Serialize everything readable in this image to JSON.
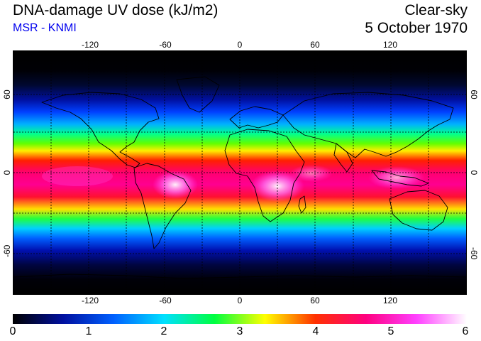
{
  "header": {
    "title": "DNA-damage UV dose (kJ/m2)",
    "subtitle": "MSR - KNMI",
    "condition": "Clear-sky",
    "date": "5 October 1970"
  },
  "map": {
    "projection": "equirectangular",
    "lon_range": [
      -180,
      180
    ],
    "lat_range": [
      -90,
      90
    ],
    "lon_ticks": [
      "-120",
      "-60",
      "0",
      "60",
      "120"
    ],
    "lat_ticks": [
      "60",
      "0",
      "-60"
    ],
    "gridlines": "dashed"
  },
  "colorbar": {
    "min": 0,
    "max": 6,
    "labels": [
      "0",
      "1",
      "2",
      "3",
      "4",
      "5",
      "6"
    ],
    "stops": [
      "#000000",
      "#0010a0",
      "#0060ff",
      "#00e0ff",
      "#00ff40",
      "#ffff00",
      "#ff3000",
      "#ff0080",
      "#ff40ff",
      "#ffffff"
    ]
  }
}
